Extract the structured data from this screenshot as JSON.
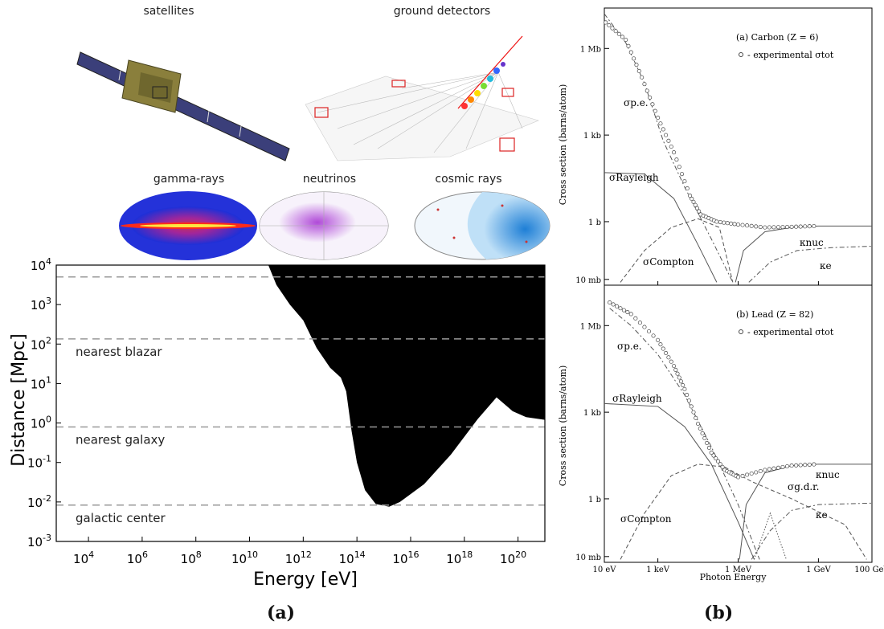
{
  "panel_a": {
    "caption": "(a)",
    "instruments": {
      "satellites": "satellites",
      "ground": "ground detectors"
    },
    "skymaps": [
      "gamma-rays",
      "neutrinos",
      "cosmic rays"
    ],
    "chart_data": {
      "type": "area",
      "xlabel": "Energy [eV]",
      "ylabel": "Distance [Mpc]",
      "x_scale": "log",
      "y_scale": "log",
      "xlim_log10": [
        2.8,
        21
      ],
      "ylim_log10": [
        -3,
        4
      ],
      "x_ticks_log10": [
        4,
        6,
        8,
        10,
        12,
        14,
        16,
        18,
        20
      ],
      "y_ticks_log10": [
        -3,
        -2,
        -1,
        0,
        1,
        2,
        3,
        4
      ],
      "reference_lines": [
        {
          "label": "",
          "log10_distance": 3.7
        },
        {
          "label": "nearest blazar",
          "log10_distance": 2.13
        },
        {
          "label": "nearest galaxy",
          "log10_distance": -0.1
        },
        {
          "label": "galactic center",
          "log10_distance": -2.08
        }
      ],
      "opaque_region_boundary": [
        {
          "log10_E": 10.7,
          "log10_D": 4.0
        },
        {
          "log10_E": 11.0,
          "log10_D": 3.5
        },
        {
          "log10_E": 11.5,
          "log10_D": 3.0
        },
        {
          "log10_E": 12.0,
          "log10_D": 2.6
        },
        {
          "log10_E": 12.5,
          "log10_D": 1.9
        },
        {
          "log10_E": 13.0,
          "log10_D": 1.4
        },
        {
          "log10_E": 13.4,
          "log10_D": 1.15
        },
        {
          "log10_E": 13.6,
          "log10_D": 0.8
        },
        {
          "log10_E": 13.8,
          "log10_D": -0.2
        },
        {
          "log10_E": 14.0,
          "log10_D": -1.0
        },
        {
          "log10_E": 14.3,
          "log10_D": -1.7
        },
        {
          "log10_E": 14.7,
          "log10_D": -2.05
        },
        {
          "log10_E": 15.2,
          "log10_D": -2.12
        },
        {
          "log10_E": 15.6,
          "log10_D": -2.0
        },
        {
          "log10_E": 16.5,
          "log10_D": -1.55
        },
        {
          "log10_E": 17.5,
          "log10_D": -0.8
        },
        {
          "log10_E": 18.5,
          "log10_D": 0.1
        },
        {
          "log10_E": 19.2,
          "log10_D": 0.65
        },
        {
          "log10_E": 19.8,
          "log10_D": 0.3
        },
        {
          "log10_E": 20.3,
          "log10_D": 0.15
        },
        {
          "log10_E": 21.0,
          "log10_D": 0.08
        }
      ]
    }
  },
  "panel_b": {
    "caption": "(b)",
    "xlabel": "Photon Energy",
    "ylabel": "Cross section  (barns/atom)",
    "x_ticks": [
      "10 eV",
      "1 keV",
      "1 MeV",
      "1 GeV",
      "100 GeV"
    ],
    "y_ticks": [
      "10 mb",
      "1 b",
      "1 kb",
      "1 Mb"
    ],
    "subplots": [
      {
        "title": "(a) Carbon (Z = 6)",
        "legend": "- experimental σtot",
        "labels": {
          "pe": "σp.e.",
          "rayleigh": "σRayleigh",
          "compton": "σCompton",
          "knuc": "κnuc",
          "ke": "κe"
        }
      },
      {
        "title": "(b) Lead (Z = 82)",
        "legend": "- experimental σtot",
        "labels": {
          "pe": "σp.e.",
          "rayleigh": "σRayleigh",
          "compton": "σCompton",
          "knuc": "κnuc",
          "ke": "κe",
          "gdr": "σg.d.r."
        }
      }
    ]
  }
}
